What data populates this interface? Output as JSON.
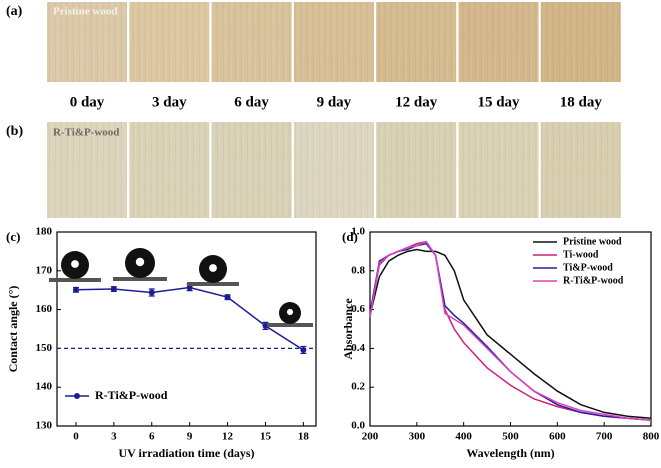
{
  "panels": {
    "a": {
      "label": "(a)",
      "caption": "Pristine wood"
    },
    "b": {
      "label": "(b)",
      "caption": "R-Ti&P-wood"
    }
  },
  "days": [
    "0 day",
    "3 day",
    "6 day",
    "9 day",
    "12 day",
    "15 day",
    "18 day"
  ],
  "chart_data": [
    {
      "type": "line",
      "panel_label": "(c)",
      "xlabel": "UV irradiation time (days)",
      "ylabel": "Contact angle (°)",
      "x": [
        0,
        3,
        6,
        9,
        12,
        15,
        18
      ],
      "xlim": [
        -1.5,
        19
      ],
      "xticks": [
        0,
        3,
        6,
        9,
        12,
        15,
        18
      ],
      "ylim": [
        130,
        180
      ],
      "yticks": [
        130,
        140,
        150,
        160,
        170,
        180
      ],
      "reference_line": 150,
      "legend": "lower left",
      "series": [
        {
          "name": "R-Ti&P-wood",
          "color": "#1c1c96",
          "marker": true,
          "values": [
            165.1,
            165.3,
            164.4,
            165.7,
            163.2,
            155.8,
            149.6
          ],
          "errors": [
            0.6,
            0.6,
            0.9,
            0.8,
            0.6,
            0.9,
            0.9
          ]
        }
      ]
    },
    {
      "type": "line",
      "panel_label": "(d)",
      "xlabel": "Wavelength (nm)",
      "ylabel": "Absorbance",
      "x": [
        200,
        220,
        240,
        260,
        280,
        300,
        320,
        340,
        360,
        380,
        400,
        450,
        500,
        550,
        600,
        650,
        700,
        750,
        800
      ],
      "xlim": [
        200,
        800
      ],
      "xticks": [
        200,
        300,
        400,
        500,
        600,
        700,
        800
      ],
      "ylim": [
        0,
        1
      ],
      "yticks": [
        {
          "value": 0,
          "label": "0.0"
        },
        0.2,
        0.4,
        0.6,
        0.8,
        {
          "value": 1,
          "label": "1.0"
        }
      ],
      "legend": "upper right",
      "series": [
        {
          "name": "Pristine wood",
          "color": "#111111",
          "values": [
            0.57,
            0.77,
            0.85,
            0.88,
            0.9,
            0.91,
            0.9,
            0.9,
            0.88,
            0.8,
            0.65,
            0.47,
            0.37,
            0.27,
            0.18,
            0.11,
            0.07,
            0.05,
            0.04
          ]
        },
        {
          "name": "Ti-wood",
          "color": "#d0207a",
          "values": [
            0.57,
            0.83,
            0.88,
            0.9,
            0.92,
            0.94,
            0.95,
            0.88,
            0.6,
            0.5,
            0.43,
            0.3,
            0.21,
            0.14,
            0.1,
            0.07,
            0.05,
            0.04,
            0.03
          ]
        },
        {
          "name": "Ti&P-wood",
          "color": "#2020a0",
          "values": [
            0.58,
            0.85,
            0.88,
            0.9,
            0.91,
            0.93,
            0.94,
            0.88,
            0.62,
            0.57,
            0.53,
            0.41,
            0.28,
            0.18,
            0.11,
            0.07,
            0.05,
            0.04,
            0.03
          ]
        },
        {
          "name": "R-Ti&P-wood",
          "color": "#e040c0",
          "values": [
            0.56,
            0.84,
            0.88,
            0.9,
            0.92,
            0.93,
            0.95,
            0.88,
            0.58,
            0.55,
            0.52,
            0.4,
            0.28,
            0.18,
            0.12,
            0.08,
            0.06,
            0.04,
            0.03
          ]
        }
      ]
    }
  ]
}
